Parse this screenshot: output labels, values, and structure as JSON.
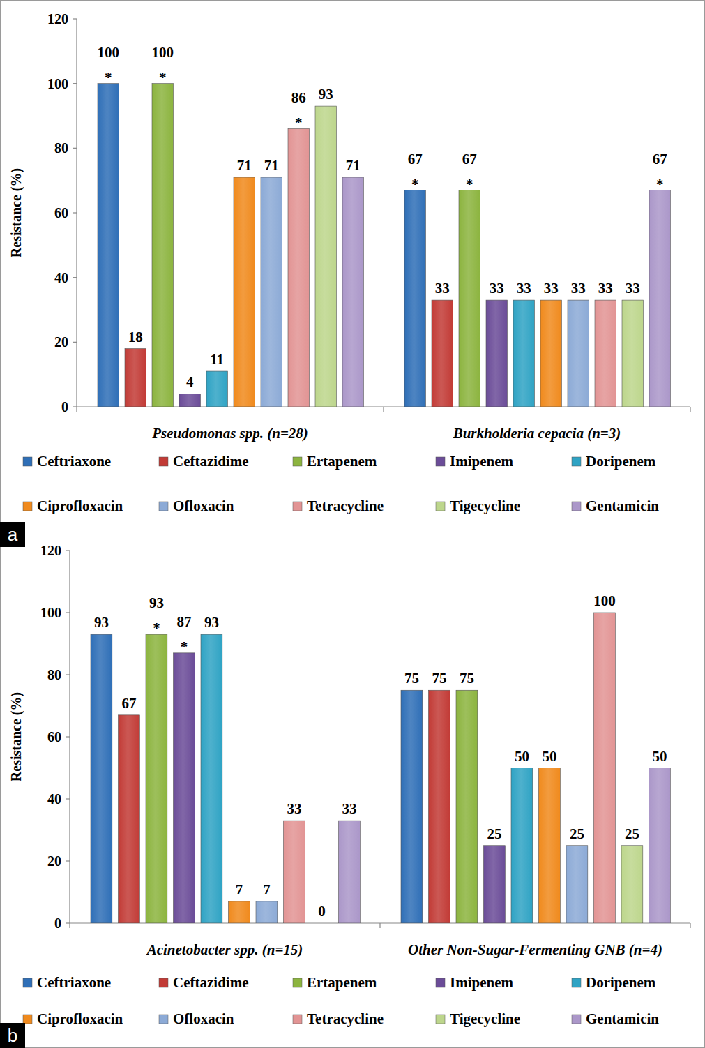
{
  "chart_data": [
    {
      "type": "bar",
      "title": "a",
      "y_label": "Resistance (%)",
      "categories": [
        "Pseudomonas spp. (n=28)",
        "Burkholderia cepacia (n=3)"
      ],
      "ylim": [
        0,
        120
      ],
      "yticks": [
        0,
        20,
        40,
        60,
        80,
        100,
        120
      ],
      "grid": false,
      "data_labels": true,
      "legend": "bottom",
      "series": [
        {
          "name": "Ceftriaxone",
          "color": "#2f6fb7",
          "values": [
            100,
            67
          ],
          "value_labels": [
            "100 *",
            "67 *"
          ]
        },
        {
          "name": "Ceftazidime",
          "color": "#c23b36",
          "values": [
            18,
            33
          ]
        },
        {
          "name": "Ertapenem",
          "color": "#8cb43f",
          "values": [
            100,
            67
          ],
          "value_labels": [
            "100 *",
            "67 *"
          ]
        },
        {
          "name": "Imipenem",
          "color": "#6b4c98",
          "values": [
            4,
            33
          ]
        },
        {
          "name": "Doripenem",
          "color": "#2fa3c4",
          "values": [
            11,
            33
          ]
        },
        {
          "name": "Ciprofloxacin",
          "color": "#f08a1d",
          "values": [
            71,
            33
          ]
        },
        {
          "name": "Ofloxacin",
          "color": "#8caad6",
          "values": [
            71,
            33
          ]
        },
        {
          "name": "Tetracycline",
          "color": "#e29494",
          "values": [
            86,
            33
          ],
          "value_labels": [
            "86 *",
            "33"
          ]
        },
        {
          "name": "Tigecycline",
          "color": "#bdd68c",
          "values": [
            93,
            33
          ]
        },
        {
          "name": "Gentamicin",
          "color": "#ab97c9",
          "values": [
            71,
            67
          ],
          "value_labels": [
            "71",
            "67 *"
          ]
        }
      ]
    },
    {
      "type": "bar",
      "title": "b",
      "y_label": "Resistance (%)",
      "categories": [
        "Acinetobacter spp. (n=15)",
        "Other Non-Sugar-Fermenting GNB (n=4)"
      ],
      "ylim": [
        0,
        120
      ],
      "yticks": [
        0,
        20,
        40,
        60,
        80,
        100,
        120
      ],
      "grid": false,
      "data_labels": true,
      "legend": "bottom",
      "series": [
        {
          "name": "Ceftriaxone",
          "color": "#2f6fb7",
          "values": [
            93,
            75
          ]
        },
        {
          "name": "Ceftazidime",
          "color": "#c23b36",
          "values": [
            67,
            75
          ]
        },
        {
          "name": "Ertapenem",
          "color": "#8cb43f",
          "values": [
            93,
            75
          ],
          "value_labels": [
            "93 *",
            "75"
          ]
        },
        {
          "name": "Imipenem",
          "color": "#6b4c98",
          "values": [
            87,
            25
          ],
          "value_labels": [
            "87 *",
            "25"
          ]
        },
        {
          "name": "Doripenem",
          "color": "#2fa3c4",
          "values": [
            93,
            50
          ]
        },
        {
          "name": "Ciprofloxacin",
          "color": "#f08a1d",
          "values": [
            7,
            50
          ]
        },
        {
          "name": "Ofloxacin",
          "color": "#8caad6",
          "values": [
            7,
            25
          ]
        },
        {
          "name": "Tetracycline",
          "color": "#e29494",
          "values": [
            33,
            100
          ]
        },
        {
          "name": "Tigecycline",
          "color": "#bdd68c",
          "values": [
            0,
            25
          ]
        },
        {
          "name": "Gentamicin",
          "color": "#ab97c9",
          "values": [
            33,
            50
          ]
        }
      ]
    }
  ]
}
